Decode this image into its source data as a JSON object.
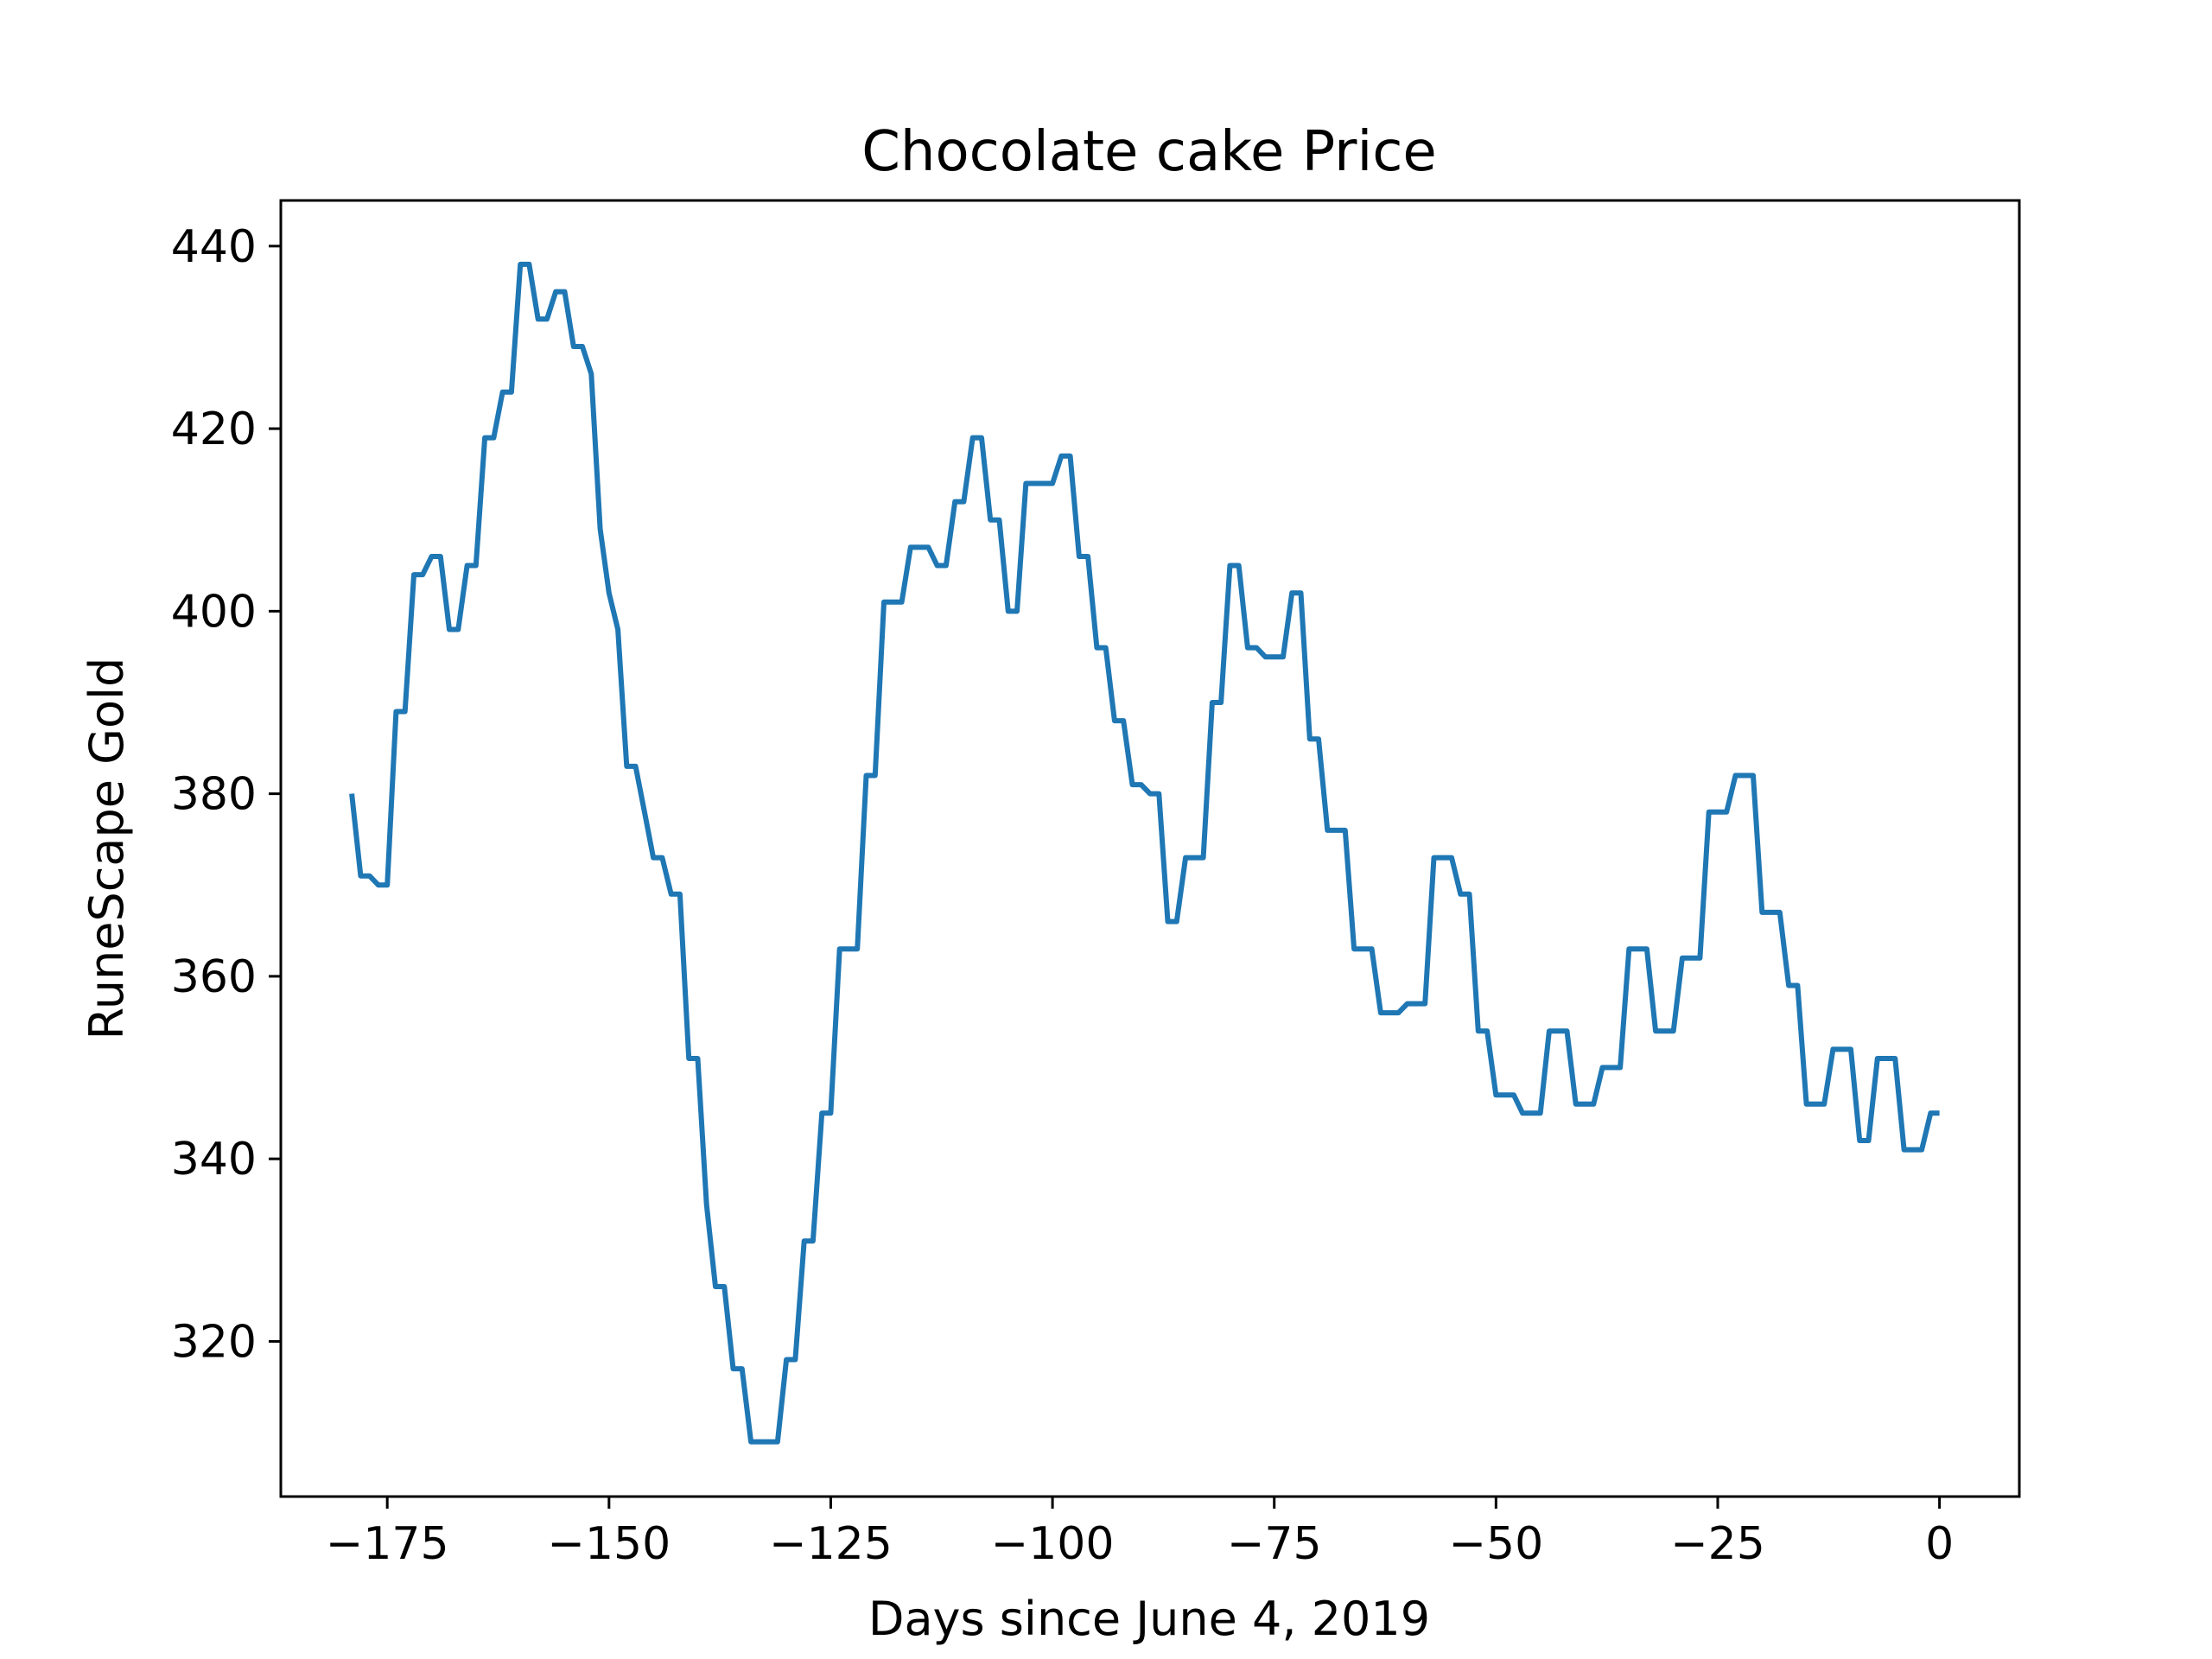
{
  "chart_data": {
    "type": "line",
    "title": "Chocolate cake Price",
    "xlabel": "Days since June 4, 2019",
    "ylabel": "RuneScape Gold",
    "xlim": [
      -187,
      9
    ],
    "ylim": [
      303,
      445
    ],
    "xticks": [
      {
        "value": -175,
        "label": "−175"
      },
      {
        "value": -150,
        "label": "−150"
      },
      {
        "value": -125,
        "label": "−125"
      },
      {
        "value": -100,
        "label": "−100"
      },
      {
        "value": -75,
        "label": "−75"
      },
      {
        "value": -50,
        "label": "−50"
      },
      {
        "value": -25,
        "label": "−25"
      },
      {
        "value": 0,
        "label": "0"
      }
    ],
    "yticks": [
      {
        "value": 320,
        "label": "320"
      },
      {
        "value": 340,
        "label": "340"
      },
      {
        "value": 360,
        "label": "360"
      },
      {
        "value": 380,
        "label": "380"
      },
      {
        "value": 400,
        "label": "400"
      },
      {
        "value": 420,
        "label": "420"
      },
      {
        "value": 440,
        "label": "440"
      }
    ],
    "grid": false,
    "line_color": "#1f77b4",
    "series": [
      {
        "x": [
          -179,
          -178,
          -177,
          -176,
          -175,
          -174,
          -173,
          -172,
          -171,
          -170,
          -169,
          -168,
          -167,
          -166,
          -165,
          -164,
          -163,
          -162,
          -161,
          -160,
          -159,
          -158,
          -157,
          -156,
          -155,
          -154,
          -153,
          -152,
          -151,
          -150,
          -149,
          -148,
          -147,
          -146,
          -145,
          -144,
          -143,
          -142,
          -141,
          -140,
          -139,
          -138,
          -137,
          -136,
          -135,
          -134,
          -133,
          -132,
          -131,
          -130,
          -129,
          -128,
          -127,
          -126,
          -125,
          -124,
          -123,
          -122,
          -121,
          -120,
          -119,
          -118,
          -117,
          -116,
          -115,
          -114,
          -113,
          -112,
          -111,
          -110,
          -109,
          -108,
          -107,
          -106,
          -105,
          -104,
          -103,
          -102,
          -101,
          -100,
          -99,
          -98,
          -97,
          -96,
          -95,
          -94,
          -93,
          -92,
          -91,
          -90,
          -89,
          -88,
          -87,
          -86,
          -85,
          -84,
          -83,
          -82,
          -81,
          -80,
          -79,
          -78,
          -77,
          -76,
          -75,
          -74,
          -73,
          -72,
          -71,
          -70,
          -69,
          -68,
          -67,
          -66,
          -65,
          -64,
          -63,
          -62,
          -61,
          -60,
          -59,
          -58,
          -57,
          -56,
          -55,
          -54,
          -53,
          -52,
          -51,
          -50,
          -49,
          -48,
          -47,
          -46,
          -45,
          -44,
          -43,
          -42,
          -41,
          -40,
          -39,
          -38,
          -37,
          -36,
          -35,
          -34,
          -33,
          -32,
          -31,
          -30,
          -29,
          -28,
          -27,
          -26,
          -25,
          -24,
          -23,
          -22,
          -21,
          -20,
          -19,
          -18,
          -17,
          -16,
          -15,
          -14,
          -13,
          -12,
          -11,
          -10,
          -9,
          -8,
          -7,
          -6,
          -5,
          -4,
          -3,
          -2,
          -1,
          0
        ],
        "y": [
          380,
          371,
          371,
          370,
          370,
          389,
          389,
          404,
          404,
          406,
          406,
          398,
          398,
          405,
          405,
          419,
          419,
          424,
          424,
          438,
          438,
          432,
          432,
          435,
          435,
          429,
          429,
          426,
          409,
          402,
          398,
          383,
          383,
          378,
          373,
          373,
          369,
          369,
          351,
          351,
          335,
          326,
          326,
          317,
          317,
          309,
          309,
          309,
          309,
          318,
          318,
          331,
          331,
          345,
          345,
          363,
          363,
          363,
          382,
          382,
          401,
          401,
          401,
          407,
          407,
          407,
          405,
          405,
          412,
          412,
          419,
          419,
          410,
          410,
          400,
          400,
          414,
          414,
          414,
          414,
          417,
          417,
          406,
          406,
          396,
          396,
          388,
          388,
          381,
          381,
          380,
          380,
          366,
          366,
          373,
          373,
          373,
          390,
          390,
          405,
          405,
          396,
          396,
          395,
          395,
          395,
          402,
          402,
          386,
          386,
          376,
          376,
          376,
          363,
          363,
          363,
          356,
          356,
          356,
          357,
          357,
          357,
          373,
          373,
          373,
          369,
          369,
          354,
          354,
          347,
          347,
          347,
          345,
          345,
          345,
          354,
          354,
          354,
          346,
          346,
          346,
          350,
          350,
          350,
          363,
          363,
          363,
          354,
          354,
          354,
          362,
          362,
          362,
          378,
          378,
          378,
          382,
          382,
          382,
          367,
          367,
          367,
          359,
          359,
          346,
          346,
          346,
          352,
          352,
          352,
          342,
          342,
          351,
          351,
          351,
          341,
          341,
          341,
          345,
          345
        ]
      }
    ]
  }
}
